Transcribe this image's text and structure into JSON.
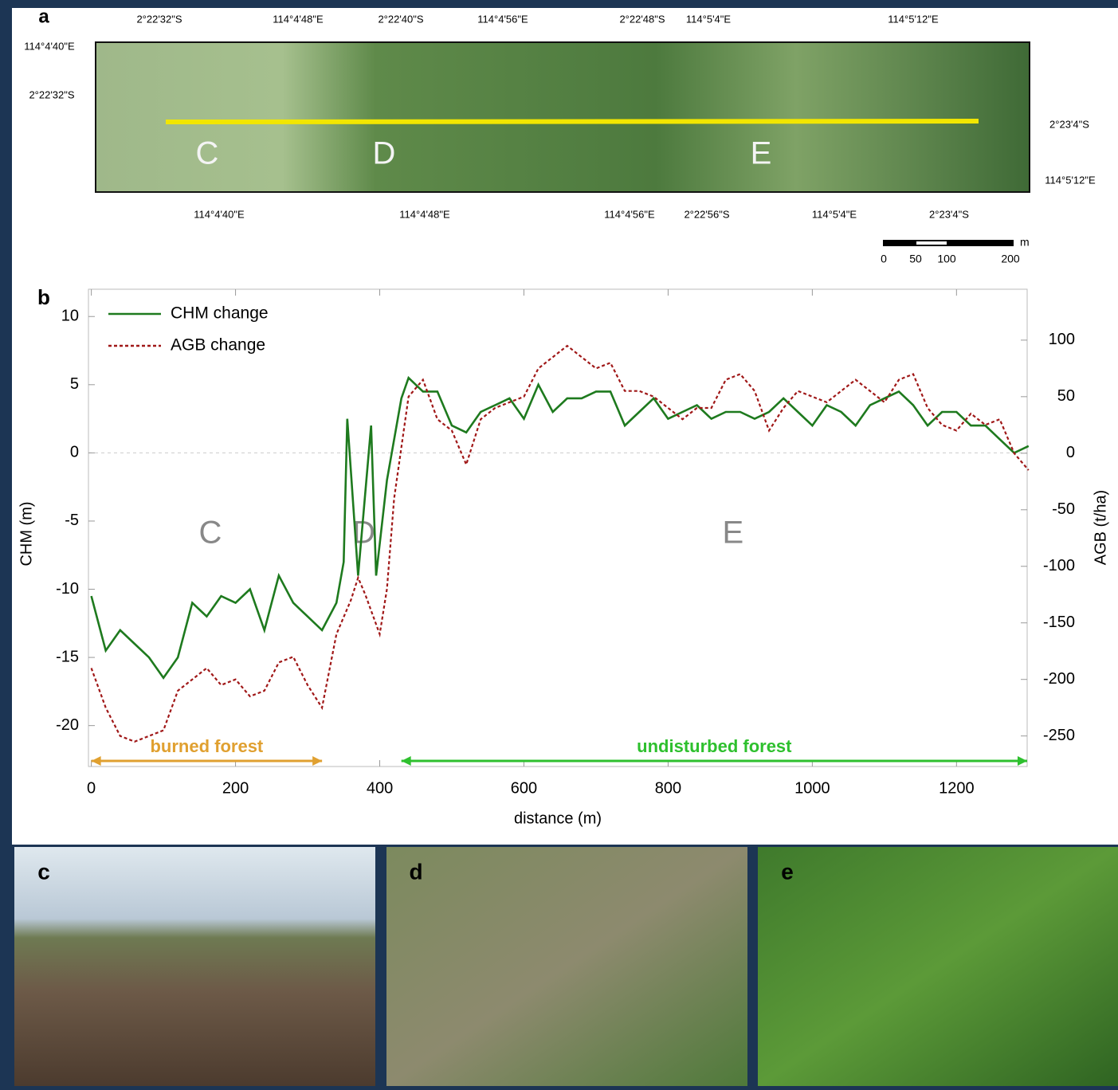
{
  "map": {
    "label": "a",
    "coords": [
      "2°22'32\"S",
      "114°4'48\"E",
      "2°22'40\"S",
      "114°4'56\"E",
      "2°22'48\"S",
      "114°5'4\"E",
      "114°5'12\"E",
      "114°4'40\"E",
      "2°22'32\"S",
      "2°23'4\"S",
      "114°5'12\"E",
      "114°4'40\"E",
      "114°4'48\"E",
      "114°4'56\"E",
      "2°22'56\"S",
      "114°5'4\"E",
      "2°23'4\"S"
    ],
    "letters": [
      "C",
      "D",
      "E"
    ],
    "scale": {
      "unit": "m",
      "labels": [
        "0",
        "50",
        "100",
        "200"
      ]
    }
  },
  "chart_data": {
    "type": "line",
    "panel_label": "b",
    "xlabel": "distance (m)",
    "ylabel": "CHM (m)",
    "y2label": "AGB (t/ha)",
    "xlim": [
      -4,
      1298
    ],
    "xticks": [
      0,
      200,
      400,
      600,
      800,
      1000,
      1200
    ],
    "ylim": [
      -23,
      12
    ],
    "yticks": [
      -20,
      -15,
      -10,
      -5,
      0,
      5,
      10
    ],
    "y2lim": [
      -277,
      145
    ],
    "y2ticks": [
      -250,
      -200,
      -150,
      -100,
      -50,
      0,
      50,
      100
    ],
    "zero_line": true,
    "legend": "upper left",
    "series": [
      {
        "name": "CHM change",
        "color": "#1e7a1e",
        "dash": false,
        "x": [
          0,
          20,
          40,
          60,
          80,
          100,
          120,
          140,
          160,
          180,
          200,
          220,
          240,
          260,
          280,
          300,
          320,
          340,
          350,
          355,
          370,
          388,
          395,
          410,
          430,
          440,
          460,
          480,
          500,
          520,
          540,
          560,
          580,
          600,
          620,
          640,
          660,
          680,
          700,
          720,
          740,
          760,
          780,
          800,
          820,
          840,
          860,
          880,
          900,
          920,
          940,
          960,
          980,
          1000,
          1020,
          1040,
          1060,
          1080,
          1100,
          1120,
          1140,
          1160,
          1180,
          1200,
          1220,
          1240,
          1260,
          1280,
          1300
        ],
        "values": [
          -10.5,
          -14.5,
          -13,
          -14,
          -15,
          -16.5,
          -15,
          -11,
          -12,
          -10.5,
          -11,
          -10,
          -13,
          -9,
          -11,
          -12,
          -13,
          -11,
          -8,
          2.5,
          -9,
          2,
          -9,
          -2,
          4,
          5.5,
          4.5,
          4.5,
          2,
          1.5,
          3,
          3.5,
          4,
          2.5,
          5,
          3,
          4,
          4,
          4.5,
          4.5,
          2,
          3,
          4,
          2.5,
          3,
          3.5,
          2.5,
          3,
          3,
          2.5,
          3,
          4,
          3,
          2,
          3.5,
          3,
          2,
          3.5,
          4,
          4.5,
          3.5,
          2,
          3,
          3,
          2,
          2,
          1,
          0,
          0.5
        ]
      },
      {
        "name": "AGB change",
        "color": "#a01818",
        "dash": true,
        "axis": "y2",
        "x": [
          0,
          20,
          40,
          60,
          80,
          100,
          120,
          140,
          160,
          180,
          200,
          220,
          240,
          260,
          280,
          300,
          320,
          340,
          360,
          370,
          380,
          400,
          410,
          420,
          440,
          460,
          480,
          500,
          520,
          540,
          560,
          580,
          600,
          620,
          640,
          660,
          680,
          700,
          720,
          740,
          760,
          780,
          800,
          820,
          840,
          860,
          880,
          900,
          920,
          940,
          960,
          980,
          1000,
          1020,
          1040,
          1060,
          1080,
          1100,
          1120,
          1140,
          1160,
          1180,
          1200,
          1220,
          1240,
          1260,
          1280,
          1300
        ],
        "values": [
          -190,
          -225,
          -250,
          -255,
          -250,
          -245,
          -210,
          -200,
          -190,
          -205,
          -200,
          -215,
          -210,
          -185,
          -180,
          -205,
          -225,
          -160,
          -130,
          -110,
          -125,
          -160,
          -120,
          -40,
          50,
          65,
          30,
          20,
          -10,
          30,
          40,
          45,
          50,
          75,
          85,
          95,
          85,
          75,
          80,
          55,
          55,
          50,
          40,
          30,
          40,
          40,
          65,
          70,
          55,
          20,
          40,
          55,
          50,
          45,
          55,
          65,
          55,
          45,
          65,
          70,
          40,
          25,
          20,
          35,
          25,
          30,
          0,
          -15
        ]
      }
    ],
    "letters": [
      {
        "text": "C",
        "x": 165,
        "y": -6
      },
      {
        "text": "D",
        "x": 378,
        "y": -6
      },
      {
        "text": "E",
        "x": 890,
        "y": -6
      }
    ],
    "spans": [
      {
        "text": "burned forest",
        "x": [
          0,
          320
        ],
        "color": "#e0a030"
      },
      {
        "text": "undisturbed forest",
        "x": [
          430,
          1298
        ],
        "color": "#2ec02e"
      }
    ]
  },
  "photos": [
    {
      "label": "c"
    },
    {
      "label": "d"
    },
    {
      "label": "e"
    }
  ]
}
